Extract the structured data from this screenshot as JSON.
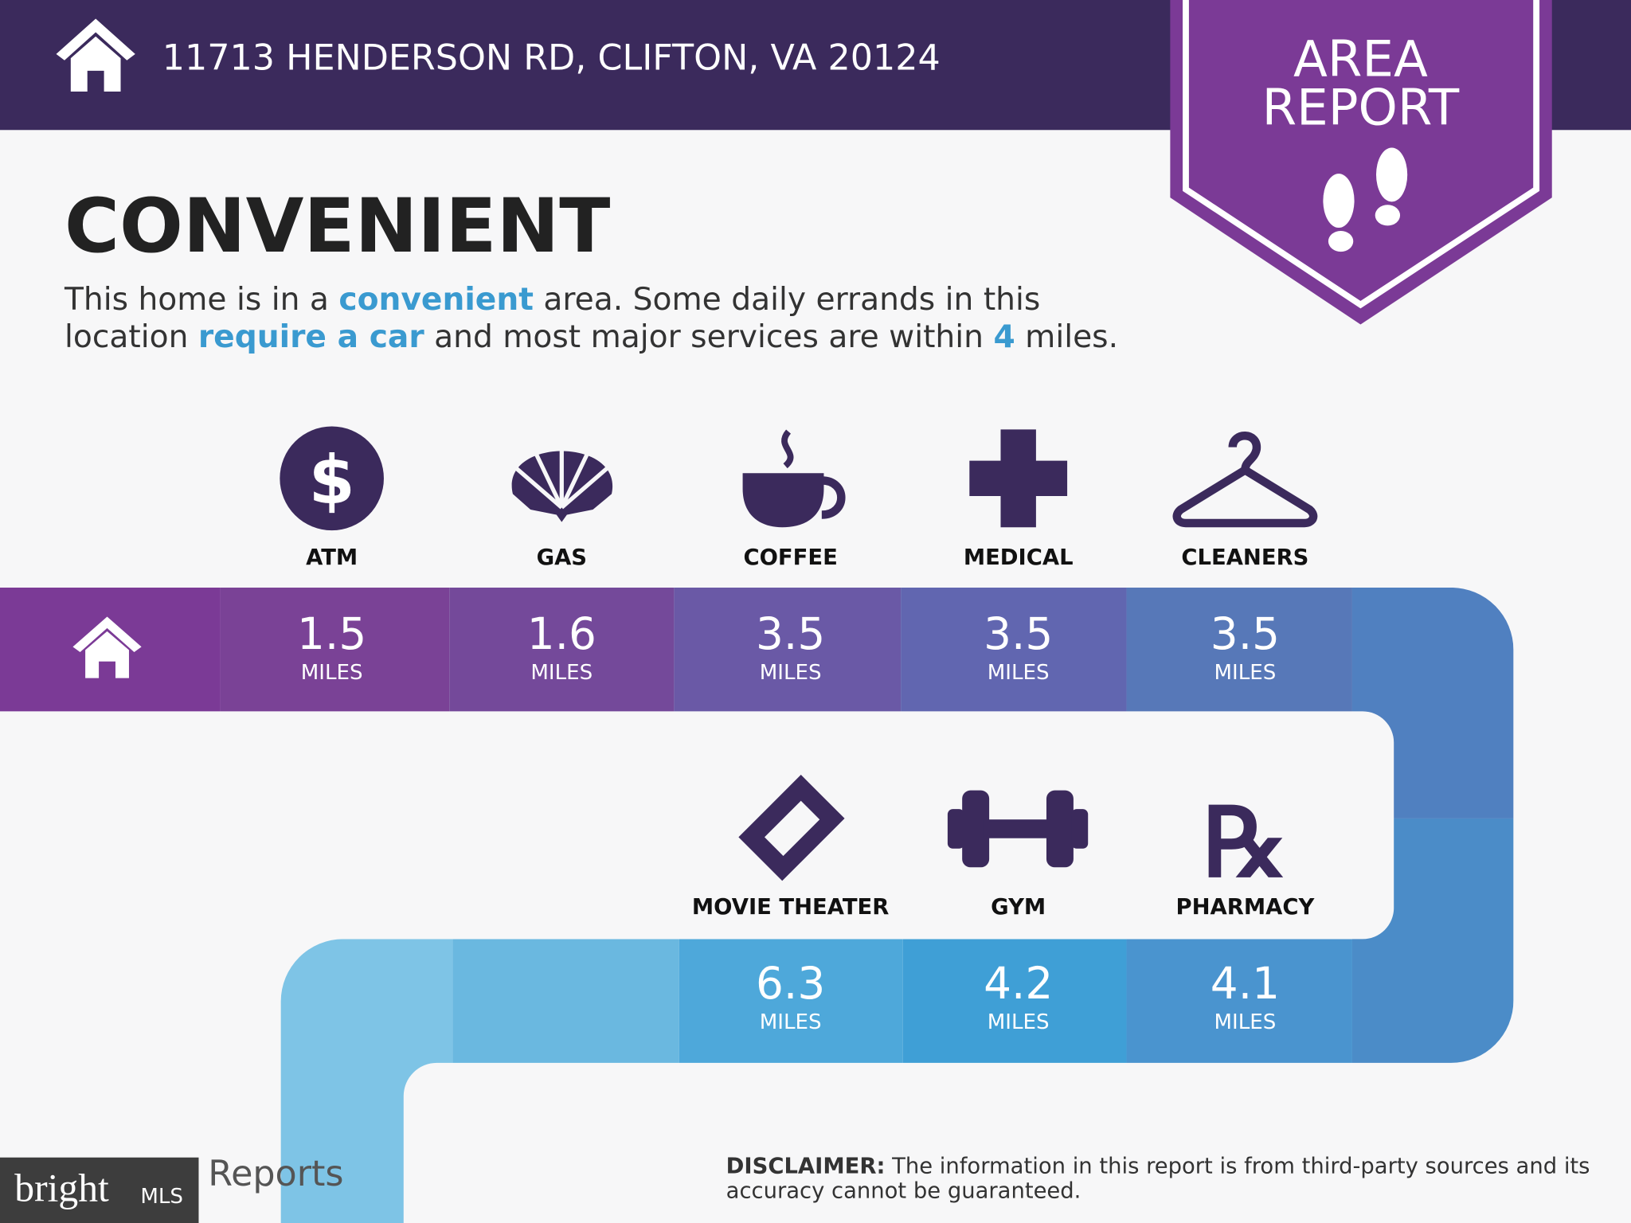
{
  "header": {
    "address": "11713 HENDERSON RD, CLIFTON, VA 20124"
  },
  "badge": {
    "line1": "AREA",
    "line2": "REPORT"
  },
  "heading": "CONVENIENT",
  "description": {
    "line1": [
      "This home is in a ",
      "convenient",
      " area. Some daily errands in this"
    ],
    "line2": [
      "location ",
      "require a car",
      " and most major services are within ",
      "4",
      " miles."
    ]
  },
  "unit": "MILES",
  "amenities": [
    {
      "label": "ATM",
      "distance": 1.5
    },
    {
      "label": "GAS",
      "distance": 1.6
    },
    {
      "label": "COFFEE",
      "distance": 3.5
    },
    {
      "label": "MEDICAL",
      "distance": 3.5
    },
    {
      "label": "CLEANERS",
      "distance": 3.5
    },
    {
      "label": "MOVIE THEATER",
      "distance": 6.3
    },
    {
      "label": "GYM",
      "distance": 4.2
    },
    {
      "label": "PHARMACY",
      "distance": 4.1
    }
  ],
  "footer": {
    "logo": "Reports",
    "watermark": {
      "brand": "bright",
      "suffix": "MLS"
    }
  },
  "disclaimer": {
    "label": "DISCLAIMER:",
    "line1": " The information in this report is from third-party sources and its",
    "line2": "accuracy cannot be guaranteed."
  }
}
